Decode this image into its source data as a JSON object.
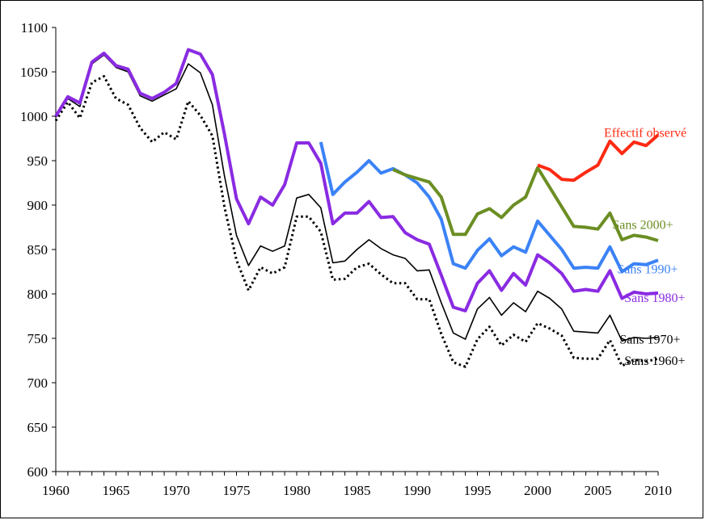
{
  "chart_data": {
    "type": "line",
    "title": "",
    "xlabel": "",
    "ylabel": "",
    "xlim": [
      1960,
      2010
    ],
    "ylim": [
      600,
      1100
    ],
    "x_ticks": [
      "1960",
      "1965",
      "1970",
      "1975",
      "1980",
      "1985",
      "1990",
      "1995",
      "2000",
      "2005",
      "2010"
    ],
    "y_ticks": [
      "600",
      "650",
      "700",
      "750",
      "800",
      "850",
      "900",
      "950",
      "1000",
      "1050",
      "1100"
    ],
    "grid": false,
    "legend": "direct labels at right",
    "series": [
      {
        "name": "Effectif observé",
        "color": "#ff2a12",
        "style": "solid-thick",
        "label_year": 2005.5,
        "label_value": 977,
        "x": [
          2000,
          2001,
          2002,
          2003,
          2004,
          2005,
          2006,
          2007,
          2008,
          2009,
          2010
        ],
        "y": [
          945,
          940,
          929,
          928,
          937,
          945,
          972,
          958,
          971,
          967,
          979
        ]
      },
      {
        "name": "Sans 2000+",
        "color": "#6b8e23",
        "style": "solid-thick",
        "label_year": 2006.2,
        "label_value": 873,
        "x": [
          1988,
          1989,
          1990,
          1991,
          1992,
          1993,
          1994,
          1995,
          1996,
          1997,
          1998,
          1999,
          2000,
          2001,
          2002,
          2003,
          2004,
          2005,
          2006,
          2007,
          2008,
          2009,
          2010
        ],
        "y": [
          940,
          934,
          930,
          926,
          909,
          867,
          867,
          890,
          896,
          886,
          900,
          909,
          942,
          920,
          898,
          876,
          875,
          873,
          891,
          861,
          866,
          864,
          860
        ]
      },
      {
        "name": "Sans 1990+",
        "color": "#3b82f6",
        "style": "solid-thick",
        "label_year": 2006.6,
        "label_value": 823,
        "x": [
          1982,
          1983,
          1984,
          1985,
          1986,
          1987,
          1988,
          1989,
          1990,
          1991,
          1992,
          1993,
          1994,
          1995,
          1996,
          1997,
          1998,
          1999,
          2000,
          2001,
          2002,
          2003,
          2004,
          2005,
          2006,
          2007,
          2008,
          2009,
          2010
        ],
        "y": [
          971,
          912,
          926,
          937,
          950,
          936,
          941,
          934,
          925,
          909,
          884,
          834,
          829,
          849,
          862,
          843,
          853,
          847,
          882,
          866,
          850,
          829,
          830,
          829,
          853,
          825,
          834,
          833,
          838
        ]
      },
      {
        "name": "Sans 1980+",
        "color": "#8a2be2",
        "style": "solid-thick",
        "label_year": 2007.2,
        "label_value": 791,
        "x": [
          1960,
          1961,
          1962,
          1963,
          1964,
          1965,
          1966,
          1967,
          1968,
          1969,
          1970,
          1971,
          1972,
          1973,
          1974,
          1975,
          1976,
          1977,
          1978,
          1979,
          1980,
          1981,
          1982,
          1983,
          1984,
          1985,
          1986,
          1987,
          1988,
          1989,
          1990,
          1991,
          1992,
          1993,
          1994,
          1995,
          1996,
          1997,
          1998,
          1999,
          2000,
          2001,
          2002,
          2003,
          2004,
          2005,
          2006,
          2007,
          2008,
          2009,
          2010
        ],
        "y": [
          1000,
          1022,
          1015,
          1061,
          1071,
          1057,
          1053,
          1026,
          1020,
          1027,
          1037,
          1075,
          1070,
          1047,
          980,
          907,
          879,
          909,
          900,
          923,
          970,
          970,
          947,
          879,
          891,
          891,
          904,
          886,
          887,
          869,
          861,
          856,
          821,
          785,
          781,
          812,
          826,
          804,
          823,
          810,
          844,
          835,
          823,
          803,
          805,
          803,
          826,
          795,
          802,
          800,
          801
        ]
      },
      {
        "name": "Sans 1970+",
        "color": "#000000",
        "style": "solid-thin",
        "label_year": 2006.8,
        "label_value": 744,
        "x": [
          1960,
          1961,
          1962,
          1963,
          1964,
          1965,
          1966,
          1967,
          1968,
          1969,
          1970,
          1971,
          1972,
          1973,
          1974,
          1975,
          1976,
          1977,
          1978,
          1979,
          1980,
          1981,
          1982,
          1983,
          1984,
          1985,
          1986,
          1987,
          1988,
          1989,
          1990,
          1991,
          1992,
          1993,
          1994,
          1995,
          1996,
          1997,
          1998,
          1999,
          2000,
          2001,
          2002,
          2003,
          2004,
          2005,
          2006,
          2007,
          2008,
          2009,
          2010
        ],
        "y": [
          999,
          1020,
          1011,
          1059,
          1069,
          1055,
          1050,
          1023,
          1017,
          1024,
          1031,
          1059,
          1049,
          1013,
          933,
          866,
          832,
          854,
          848,
          854,
          908,
          912,
          897,
          835,
          837,
          850,
          861,
          851,
          844,
          840,
          826,
          827,
          790,
          756,
          749,
          783,
          796,
          776,
          790,
          780,
          803,
          795,
          783,
          758,
          757,
          756,
          776,
          747,
          751,
          750,
          751
        ]
      },
      {
        "name": "Sans 1960+",
        "color": "#000000",
        "style": "dotted",
        "label_year": 2007.2,
        "label_value": 720,
        "x": [
          1960,
          1961,
          1962,
          1963,
          1964,
          1965,
          1966,
          1967,
          1968,
          1969,
          1970,
          1971,
          1972,
          1973,
          1974,
          1975,
          1976,
          1977,
          1978,
          1979,
          1980,
          1981,
          1982,
          1983,
          1984,
          1985,
          1986,
          1987,
          1988,
          1989,
          1990,
          1991,
          1992,
          1993,
          1994,
          1995,
          1996,
          1997,
          1998,
          1999,
          2000,
          2001,
          2002,
          2003,
          2004,
          2005,
          2006,
          2007,
          2008,
          2009,
          2010
        ],
        "y": [
          995,
          1016,
          998,
          1038,
          1045,
          1020,
          1013,
          987,
          971,
          982,
          974,
          1017,
          1001,
          978,
          898,
          838,
          804,
          830,
          823,
          830,
          887,
          887,
          870,
          816,
          817,
          830,
          834,
          822,
          812,
          812,
          794,
          794,
          755,
          723,
          718,
          749,
          763,
          742,
          754,
          746,
          767,
          761,
          753,
          728,
          727,
          727,
          748,
          719,
          726,
          724,
          727
        ]
      }
    ]
  }
}
